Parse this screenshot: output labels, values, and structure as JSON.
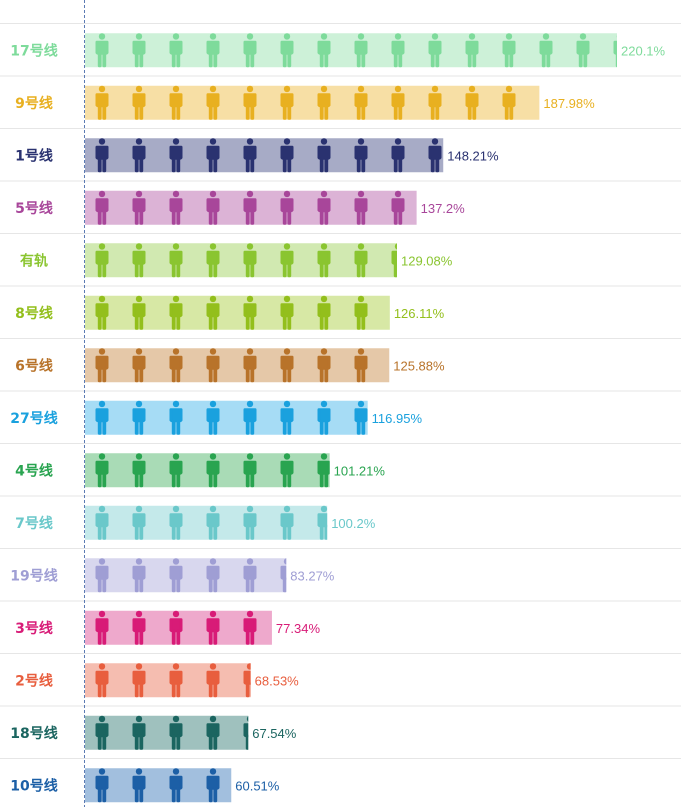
{
  "chart_data": {
    "type": "bar",
    "orientation": "horizontal",
    "title": "",
    "xlabel": "",
    "ylabel": "",
    "xlim": [
      0,
      220.1
    ],
    "value_suffix": "%",
    "grid": false,
    "legend": "none",
    "categories": [
      "17号线",
      "9号线",
      "1号线",
      "5号线",
      "有轨",
      "8号线",
      "6号线",
      "27号线",
      "4号线",
      "7号线",
      "19号线",
      "3号线",
      "2号线",
      "18号线",
      "10号线"
    ],
    "values": [
      220.1,
      187.98,
      148.21,
      137.2,
      129.08,
      126.11,
      125.88,
      116.95,
      101.21,
      100.2,
      83.27,
      77.34,
      68.53,
      67.54,
      60.51
    ],
    "value_labels": [
      "220.1%",
      "187.98%",
      "148.21%",
      "137.2%",
      "129.08%",
      "126.11%",
      "125.88%",
      "116.95%",
      "101.21%",
      "100.2%",
      "83.27%",
      "77.34%",
      "68.53%",
      "67.54%",
      "60.51%"
    ],
    "colors": [
      "#7edb9b",
      "#e8b020",
      "#2a3270",
      "#a8469a",
      "#8ac530",
      "#93bf1c",
      "#b8732a",
      "#1aa1de",
      "#29a450",
      "#6ac8ca",
      "#9f9ed4",
      "#d81b77",
      "#e85e3e",
      "#1b6560",
      "#1c5fa6"
    ],
    "bar_fill_colors": [
      "#cdf1d8",
      "#f7dfa5",
      "#a7abc6",
      "#dcb3d6",
      "#d1e9b1",
      "#d7e8a5",
      "#e5c8a8",
      "#a6dcf5",
      "#a9dbb6",
      "#c4e9ea",
      "#d8d7ee",
      "#eea9cc",
      "#f5bdb0",
      "#9fc1be",
      "#a2bfde"
    ],
    "pictogram": "person-icon",
    "tick_label_colors": [
      "#7edb9b",
      "#e8b020",
      "#2a3270",
      "#a8469a",
      "#8ac530",
      "#93bf1c",
      "#b8732a",
      "#1aa1de",
      "#29a450",
      "#6ac8ca",
      "#9f9ed4",
      "#d81b77",
      "#e85e3e",
      "#1b6560",
      "#1c5fa6"
    ]
  }
}
